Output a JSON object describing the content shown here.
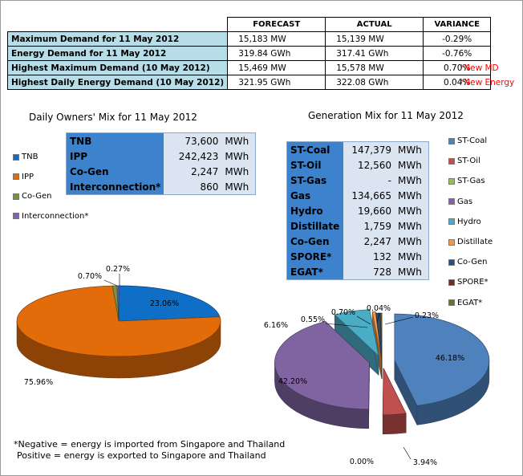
{
  "summary": {
    "headers": [
      "FORECAST",
      "ACTUAL",
      "VARIANCE"
    ],
    "rows": [
      {
        "label": "Maximum Demand for 11 May 2012",
        "forecast": "15,183  MW",
        "actual": "15,139  MW",
        "variance": "-0.29%",
        "note": ""
      },
      {
        "label": "Energy Demand for 11 May 2012",
        "forecast": "319.84  GWh",
        "actual": "317.41  GWh",
        "variance": "-0.76%",
        "note": ""
      },
      {
        "label": "Highest Maximum Demand (10 May 2012)",
        "forecast": "15,469  MW",
        "actual": "15,578  MW",
        "variance": "0.70%",
        "note": "*New MD"
      },
      {
        "label": "Highest Daily Energy Demand (10 May 2012)",
        "forecast": "321.95  GWh",
        "actual": "322.08  GWh",
        "variance": "0.04%",
        "note": "*New Energy"
      }
    ],
    "note_color": "#ff0000",
    "label_color": "#b7dde8"
  },
  "owners": {
    "title": "Daily Owners' Mix for 11 May 2012",
    "table": [
      {
        "name": "TNB",
        "value": "73,600",
        "unit": "MWh"
      },
      {
        "name": "IPP",
        "value": "242,423",
        "unit": "MWh"
      },
      {
        "name": "Co-Gen",
        "value": "2,247",
        "unit": "MWh"
      },
      {
        "name": "Interconnection*",
        "value": "860",
        "unit": "MWh"
      }
    ]
  },
  "generation": {
    "title": "Generation Mix for 11 May 2012",
    "table": [
      {
        "name": "ST-Coal",
        "value": "147,379",
        "unit": "MWh"
      },
      {
        "name": "ST-Oil",
        "value": "12,560",
        "unit": "MWh"
      },
      {
        "name": "ST-Gas",
        "value": "-",
        "unit": "MWh"
      },
      {
        "name": "Gas",
        "value": "134,665",
        "unit": "MWh"
      },
      {
        "name": "Hydro",
        "value": "19,660",
        "unit": "MWh"
      },
      {
        "name": "Distillate",
        "value": "1,759",
        "unit": "MWh"
      },
      {
        "name": "Co-Gen",
        "value": "2,247",
        "unit": "MWh"
      },
      {
        "name": "SPORE*",
        "value": "132",
        "unit": "MWh"
      },
      {
        "name": "EGAT*",
        "value": "728",
        "unit": "MWh"
      }
    ]
  },
  "chart_data": [
    {
      "type": "pie",
      "title": "Daily Owners' Mix for 11 May 2012",
      "legend_position": "left",
      "slices": [
        {
          "name": "TNB",
          "value": 23.06,
          "label": "23.06%",
          "color": "#0f6fc6"
        },
        {
          "name": "IPP",
          "value": 75.96,
          "label": "75.96%",
          "color": "#e36c0a"
        },
        {
          "name": "Co-Gen",
          "value": 0.7,
          "label": "0.70%",
          "color": "#77933c"
        },
        {
          "name": "Interconnection*",
          "value": 0.27,
          "label": "0.27%",
          "color": "#7f64a6"
        }
      ]
    },
    {
      "type": "pie",
      "title": "Generation Mix for 11 May 2012",
      "legend_position": "right",
      "slices": [
        {
          "name": "ST-Coal",
          "value": 46.18,
          "label": "46.18%",
          "color": "#4f81bd"
        },
        {
          "name": "ST-Oil",
          "value": 3.94,
          "label": "3.94%",
          "color": "#c0504d"
        },
        {
          "name": "ST-Gas",
          "value": 0.0,
          "label": "0.00%",
          "color": "#9bbb59"
        },
        {
          "name": "Gas",
          "value": 42.2,
          "label": "42.20%",
          "color": "#8064a2"
        },
        {
          "name": "Hydro",
          "value": 6.16,
          "label": "6.16%",
          "color": "#4bacc6"
        },
        {
          "name": "Distillate",
          "value": 0.55,
          "label": "0.55%",
          "color": "#f79646"
        },
        {
          "name": "Co-Gen",
          "value": 0.7,
          "label": "0.70%",
          "color": "#2c4d75"
        },
        {
          "name": "SPORE*",
          "value": 0.04,
          "label": "0.04%",
          "color": "#772c2a"
        },
        {
          "name": "EGAT*",
          "value": 0.23,
          "label": "0.23%",
          "color": "#5f7530"
        }
      ]
    }
  ],
  "footnote": {
    "line1": "*Negative = energy is imported from Singapore and Thailand",
    "line2": "Positive = energy is exported to Singapore and Thailand"
  }
}
